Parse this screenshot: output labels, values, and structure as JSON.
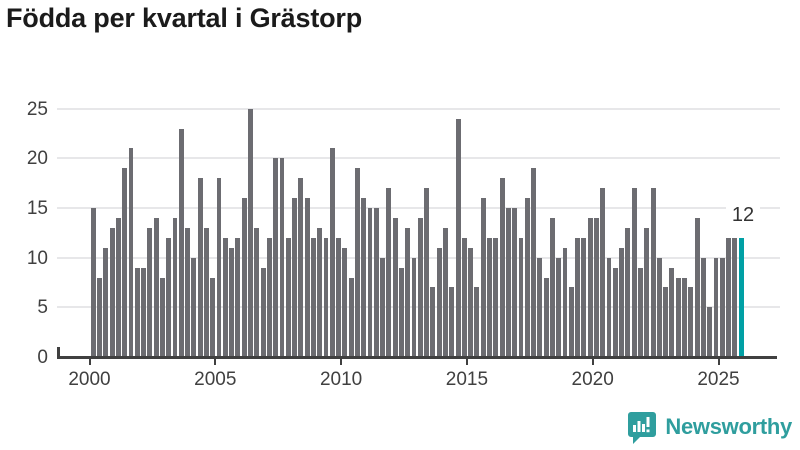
{
  "title": "Födda per kvartal i Grästorp",
  "annotation": {
    "last_value_label": "12"
  },
  "footer": {
    "brand": "Newsworthy",
    "icon": "newsworthy-logo-icon"
  },
  "colors": {
    "title_text": "#1b1b1b",
    "bar": "#6c6c71",
    "highlight": "#00a0a5",
    "gridline": "#e7e7e9",
    "axis": "#404040",
    "axis_text": "#404040",
    "annotation_text": "#333333",
    "brand_teal": "#2f9e9e"
  },
  "chart_data": {
    "type": "bar",
    "title": "Födda per kvartal i Grästorp",
    "xlabel": "",
    "ylabel": "",
    "frequency": "quarterly",
    "start": "2000-Q1",
    "end": "2025-Q4",
    "ylim": [
      0,
      25
    ],
    "y_ticks": [
      0,
      5,
      10,
      15,
      20,
      25
    ],
    "x_tick_years": [
      2000,
      2005,
      2010,
      2015,
      2020,
      2025
    ],
    "grid": "horizontal",
    "legend": "none",
    "highlight_last_bar": true,
    "highlight_last_value": 12,
    "years": [
      {
        "year": 2000,
        "quarters": [
          15,
          8,
          11,
          13
        ]
      },
      {
        "year": 2001,
        "quarters": [
          14,
          19,
          21,
          9
        ]
      },
      {
        "year": 2002,
        "quarters": [
          9,
          13,
          14,
          8
        ]
      },
      {
        "year": 2003,
        "quarters": [
          12,
          14,
          23,
          13
        ]
      },
      {
        "year": 2004,
        "quarters": [
          10,
          18,
          13,
          8
        ]
      },
      {
        "year": 2005,
        "quarters": [
          18,
          12,
          11,
          12
        ]
      },
      {
        "year": 2006,
        "quarters": [
          16,
          25,
          13,
          9
        ]
      },
      {
        "year": 2007,
        "quarters": [
          12,
          20,
          20,
          12
        ]
      },
      {
        "year": 2008,
        "quarters": [
          16,
          18,
          16,
          12
        ]
      },
      {
        "year": 2009,
        "quarters": [
          13,
          12,
          21,
          12
        ]
      },
      {
        "year": 2010,
        "quarters": [
          11,
          8,
          19,
          16
        ]
      },
      {
        "year": 2011,
        "quarters": [
          15,
          15,
          10,
          17
        ]
      },
      {
        "year": 2012,
        "quarters": [
          14,
          9,
          13,
          10
        ]
      },
      {
        "year": 2013,
        "quarters": [
          14,
          17,
          7,
          11
        ]
      },
      {
        "year": 2014,
        "quarters": [
          13,
          7,
          24,
          12
        ]
      },
      {
        "year": 2015,
        "quarters": [
          11,
          7,
          16,
          12
        ]
      },
      {
        "year": 2016,
        "quarters": [
          12,
          18,
          15,
          15
        ]
      },
      {
        "year": 2017,
        "quarters": [
          12,
          16,
          19,
          10
        ]
      },
      {
        "year": 2018,
        "quarters": [
          8,
          14,
          10,
          11
        ]
      },
      {
        "year": 2019,
        "quarters": [
          7,
          12,
          12,
          14
        ]
      },
      {
        "year": 2020,
        "quarters": [
          14,
          17,
          10,
          9
        ]
      },
      {
        "year": 2021,
        "quarters": [
          11,
          13,
          17,
          9
        ]
      },
      {
        "year": 2022,
        "quarters": [
          13,
          17,
          10,
          7
        ]
      },
      {
        "year": 2023,
        "quarters": [
          9,
          8,
          8,
          7
        ]
      },
      {
        "year": 2024,
        "quarters": [
          14,
          10,
          5,
          10
        ]
      },
      {
        "year": 2025,
        "quarters": [
          10,
          12,
          12,
          12
        ]
      }
    ]
  }
}
